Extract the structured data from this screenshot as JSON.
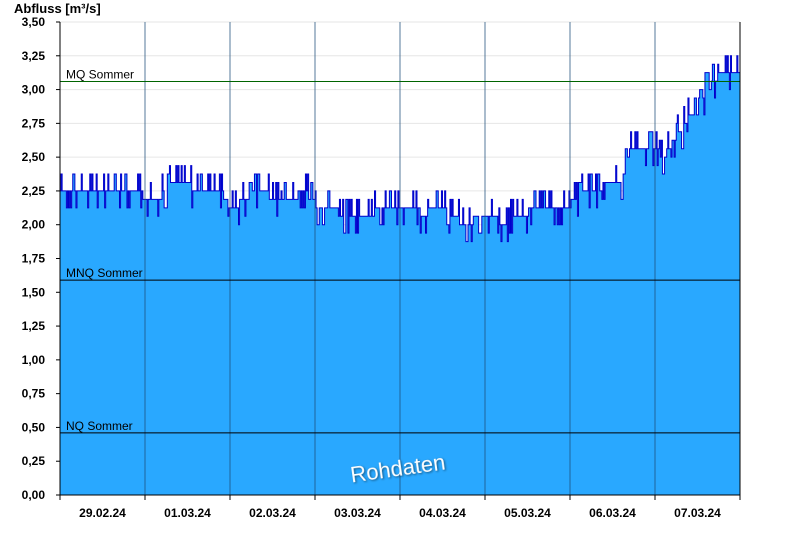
{
  "chart_data": {
    "type": "area",
    "ylabel": "Abfluss [m³/s]",
    "ylim": [
      0,
      3.5
    ],
    "yticks": [
      "0,00",
      "0,25",
      "0,50",
      "0,75",
      "1,00",
      "1,25",
      "1,50",
      "1,75",
      "2,00",
      "2,25",
      "2,50",
      "2,75",
      "3,00",
      "3,25",
      "3,50"
    ],
    "xticks": [
      "29.02.24",
      "01.03.24",
      "02.03.24",
      "03.03.24",
      "04.03.24",
      "05.03.24",
      "06.03.24",
      "07.03.24"
    ],
    "x_days_range": [
      0,
      8
    ],
    "grid": true,
    "fill_color": "#29a8ff",
    "line_color": "#0000cc",
    "reference_lines": [
      {
        "label": "MQ Sommer",
        "value": 3.06,
        "color": "#006400"
      },
      {
        "label": "MNQ Sommer",
        "value": 1.59,
        "color": "#000000"
      },
      {
        "label": "NQ Sommer",
        "value": 0.46,
        "color": "#000000"
      }
    ],
    "watermark": "Rohdaten",
    "series": [
      {
        "x": [
          0,
          0.1,
          0.2,
          0.3,
          0.4,
          0.5,
          0.6,
          0.7,
          0.8,
          0.9,
          1.0,
          1.1,
          1.2,
          1.3,
          1.4,
          1.5,
          1.6,
          1.7,
          1.8,
          1.9,
          2.0,
          2.1,
          2.2,
          2.3,
          2.4,
          2.5,
          2.6,
          2.7,
          2.8,
          2.9,
          3.0,
          3.1,
          3.2,
          3.3,
          3.4,
          3.5,
          3.6,
          3.7,
          3.8,
          3.9,
          4.0,
          4.1,
          4.2,
          4.3,
          4.4,
          4.5,
          4.6,
          4.7,
          4.8,
          4.9,
          5.0,
          5.1,
          5.2,
          5.3,
          5.4,
          5.5,
          5.6,
          5.7,
          5.8,
          5.9,
          6.0,
          6.1,
          6.2,
          6.3,
          6.4,
          6.5,
          6.6,
          6.7,
          6.8,
          6.9,
          7.0,
          7.1,
          7.2,
          7.3,
          7.4,
          7.5,
          7.6,
          7.7,
          7.8,
          7.9,
          8.0
        ],
        "values": [
          2.27,
          2.27,
          2.27,
          2.27,
          2.23,
          2.27,
          2.27,
          2.23,
          2.28,
          2.26,
          2.2,
          2.2,
          2.22,
          2.29,
          2.3,
          2.3,
          2.26,
          2.27,
          2.25,
          2.24,
          2.13,
          2.15,
          2.2,
          2.23,
          2.24,
          2.2,
          2.22,
          2.2,
          2.22,
          2.23,
          2.15,
          2.12,
          2.12,
          2.08,
          2.08,
          2.06,
          2.04,
          2.1,
          2.12,
          2.1,
          2.15,
          2.12,
          2.1,
          2.08,
          2.12,
          2.13,
          2.08,
          2.03,
          2.0,
          2.05,
          2.07,
          2.07,
          2.0,
          2.04,
          2.09,
          2.09,
          2.13,
          2.13,
          2.1,
          2.1,
          2.15,
          2.2,
          2.25,
          2.26,
          2.29,
          2.31,
          2.3,
          2.54,
          2.58,
          2.55,
          2.55,
          2.5,
          2.62,
          2.68,
          2.82,
          2.82,
          2.99,
          3.06,
          3.13,
          3.13,
          3.12
        ]
      }
    ]
  }
}
